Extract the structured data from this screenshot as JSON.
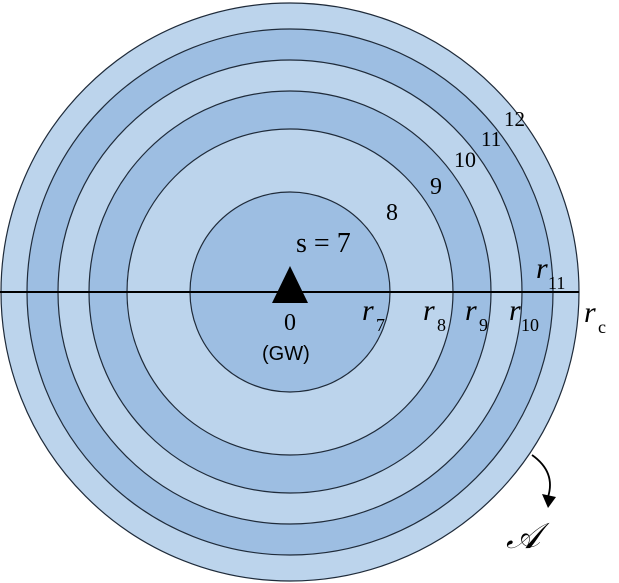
{
  "colors": {
    "light": "#bcd4ec",
    "dark": "#9dbee2",
    "stroke": "#1f2b3a",
    "axis": "#000000"
  },
  "rings": [
    {
      "name": "ring-rc",
      "shade": "light"
    },
    {
      "name": "ring-11",
      "shade": "dark"
    },
    {
      "name": "ring-10",
      "shade": "light"
    },
    {
      "name": "ring-9",
      "shade": "dark"
    },
    {
      "name": "ring-8",
      "shade": "light"
    },
    {
      "name": "ring-7",
      "shade": "dark"
    }
  ],
  "ring_numbers": [
    "8",
    "9",
    "10",
    "11",
    "12"
  ],
  "labels": {
    "s_eq": "s = 7",
    "gw_index": "0",
    "gw_name": "(GW)",
    "area_symbol": "𝒜"
  },
  "radius_labels": [
    {
      "base": "r",
      "sub": "7"
    },
    {
      "base": "r",
      "sub": "8"
    },
    {
      "base": "r",
      "sub": "9"
    },
    {
      "base": "r",
      "sub": "10"
    },
    {
      "base": "r",
      "sub": "11"
    },
    {
      "base": "r",
      "sub": "c"
    }
  ],
  "icons": {
    "gateway": "triangle-gateway-icon",
    "arrow": "curved-arrow-icon"
  }
}
